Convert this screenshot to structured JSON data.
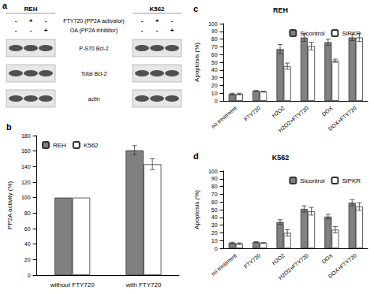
{
  "blot": {
    "panel": "a",
    "cell_lines": [
      "REH",
      "K562"
    ],
    "treatments": [
      {
        "label": "FTY720 (PP2A activator)",
        "signs": [
          "-",
          "+",
          "-"
        ]
      },
      {
        "label": "OA (PP2A inhibitor)",
        "signs": [
          "-",
          "-",
          "+"
        ]
      }
    ],
    "rows": [
      "P-S70 Bcl-2",
      "Total Bcl-2",
      "actin"
    ]
  },
  "chart_data": [
    {
      "panel": "b",
      "type": "bar",
      "ylabel": "PP2A activity (%)",
      "categories": [
        "without FTY720",
        "with FTY720"
      ],
      "series": [
        {
          "name": "REH",
          "color": "#808080",
          "values": [
            100,
            161
          ],
          "errors": [
            0,
            6
          ]
        },
        {
          "name": "K562",
          "color": "#ffffff",
          "values": [
            100,
            143
          ],
          "errors": [
            0,
            7
          ]
        }
      ],
      "ylim": [
        0,
        180
      ],
      "yticks": [
        0,
        20,
        40,
        60,
        80,
        100,
        120,
        140,
        160,
        180
      ],
      "grid": false,
      "legend": "upper left"
    },
    {
      "panel": "c",
      "type": "bar",
      "title": "REH",
      "ylabel": "Apoptosis (%)",
      "categories": [
        "no treatment",
        "FTY720",
        "H2O2",
        "H2O2+FTY720",
        "DOX",
        "DOX+FTY720"
      ],
      "series": [
        {
          "name": "Sicontrol",
          "color": "#808080",
          "values": [
            9,
            13,
            67,
            82,
            76,
            82
          ],
          "errors": [
            1,
            0.5,
            6,
            5,
            4,
            4
          ]
        },
        {
          "name": "SiPKR",
          "color": "#ffffff",
          "values": [
            9,
            12,
            45,
            71,
            52,
            82
          ],
          "errors": [
            1,
            0.5,
            4,
            5,
            2,
            5
          ]
        }
      ],
      "ylim": [
        0,
        100
      ],
      "yticks": [
        0,
        10,
        20,
        30,
        40,
        50,
        60,
        70,
        80,
        90,
        100
      ],
      "grid": false,
      "legend": "upper right"
    },
    {
      "panel": "d",
      "type": "bar",
      "title": "K562",
      "ylabel": "Apoptosis (%)",
      "categories": [
        "no treatment",
        "FTY720",
        "H2O2",
        "H2O2+FTY720",
        "DOX",
        "DOX+FTY720"
      ],
      "series": [
        {
          "name": "Sicontrol",
          "color": "#808080",
          "values": [
            7,
            8,
            34,
            51,
            41,
            59
          ],
          "errors": [
            1,
            0.5,
            3,
            4,
            3,
            4
          ]
        },
        {
          "name": "SiPKR",
          "color": "#ffffff",
          "values": [
            6,
            7,
            20,
            48,
            24,
            54
          ],
          "errors": [
            1,
            0.5,
            4,
            5,
            4,
            5
          ]
        }
      ],
      "ylim": [
        0,
        100
      ],
      "yticks": [
        0,
        10,
        20,
        30,
        40,
        50,
        60,
        70,
        80,
        90,
        100
      ],
      "grid": false,
      "legend": "upper right"
    }
  ]
}
